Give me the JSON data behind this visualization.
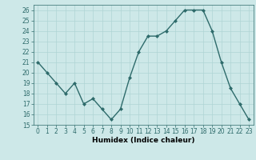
{
  "x": [
    0,
    1,
    2,
    3,
    4,
    5,
    6,
    7,
    8,
    9,
    10,
    11,
    12,
    13,
    14,
    15,
    16,
    17,
    18,
    19,
    20,
    21,
    22,
    23
  ],
  "y": [
    21,
    20,
    19,
    18,
    19,
    17,
    17.5,
    16.5,
    15.5,
    16.5,
    19.5,
    22,
    23.5,
    23.5,
    24,
    25,
    26,
    26,
    26,
    24,
    21,
    18.5,
    17,
    15.5
  ],
  "line_color": "#2e6b6b",
  "marker": "D",
  "marker_size": 2,
  "bg_color": "#cde8e8",
  "grid_color": "#b0d4d4",
  "xlabel": "Humidex (Indice chaleur)",
  "ylim": [
    15,
    26.5
  ],
  "yticks": [
    15,
    16,
    17,
    18,
    19,
    20,
    21,
    22,
    23,
    24,
    25,
    26
  ],
  "xticks": [
    0,
    1,
    2,
    3,
    4,
    5,
    6,
    7,
    8,
    9,
    10,
    11,
    12,
    13,
    14,
    15,
    16,
    17,
    18,
    19,
    20,
    21,
    22,
    23
  ],
  "xlim": [
    -0.5,
    23.5
  ],
  "tick_fontsize": 5.5,
  "xlabel_fontsize": 6.5
}
